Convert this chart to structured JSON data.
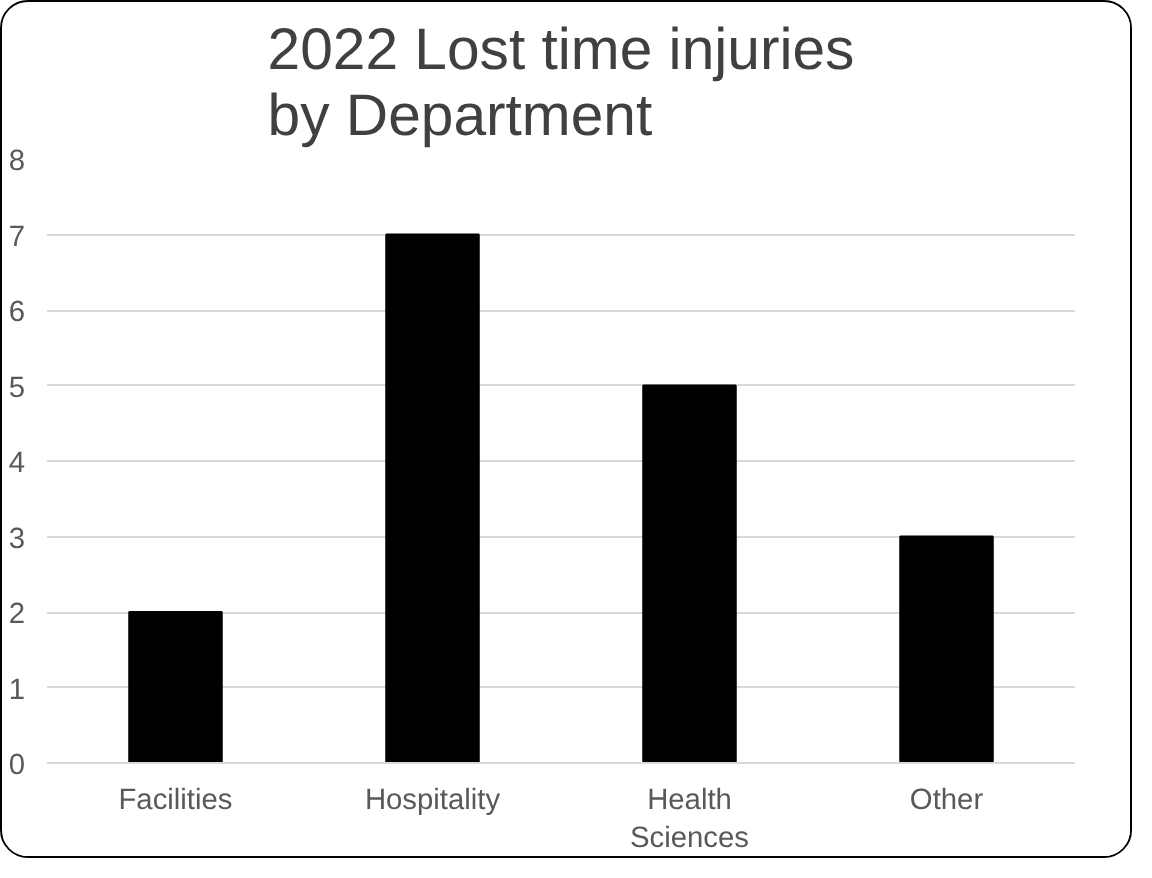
{
  "chart_data": {
    "type": "bar",
    "title": "2022 Lost time injuries\nby Department",
    "categories": [
      "Facilities",
      "Hospitality",
      "Health Sciences",
      "Other"
    ],
    "values": [
      2,
      7,
      5,
      3
    ],
    "color": "#000000",
    "ylim": [
      0,
      8
    ],
    "yticks": [
      0,
      1,
      2,
      3,
      4,
      5,
      6,
      7,
      8
    ],
    "grid": "y"
  }
}
